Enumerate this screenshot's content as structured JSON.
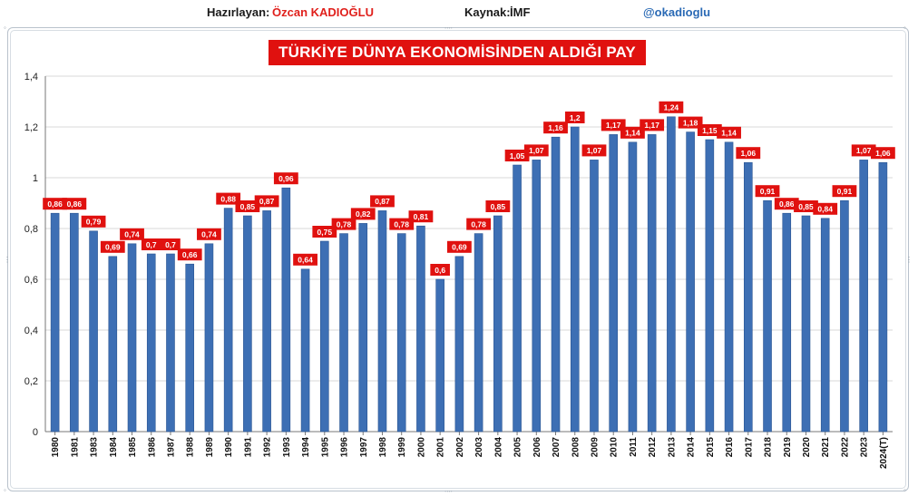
{
  "header": {
    "prepared_label": "Hazırlayan:",
    "prepared_name": "Özcan KADIOĞLU",
    "source_label": "Kaynak:",
    "source_value": "İMF",
    "handle": "@okadioglu"
  },
  "colors": {
    "bar": "#3d6fb4",
    "label_bg": "#e0110f",
    "title_bg": "#e0110f",
    "grid": "#d8d8d8"
  },
  "chart_data": {
    "type": "bar",
    "title": "TÜRKİYE DÜNYA EKONOMİSİNDEN ALDIĞI PAY (%)",
    "xlabel": "",
    "ylabel": "",
    "ylim": [
      0,
      1.4
    ],
    "yticks": [
      "0",
      "0,2",
      "0,4",
      "0,6",
      "0,8",
      "1",
      "1,2",
      "1,4"
    ],
    "grid": true,
    "legend": "none",
    "categories": [
      "1980",
      "1981",
      "1983",
      "1984",
      "1985",
      "1986",
      "1987",
      "1988",
      "1989",
      "1990",
      "1991",
      "1992",
      "1993",
      "1994",
      "1995",
      "1996",
      "1997",
      "1998",
      "1999",
      "2000",
      "2001",
      "2002",
      "2003",
      "2004",
      "2005",
      "2006",
      "2007",
      "2008",
      "2009",
      "2010",
      "2011",
      "2012",
      "2013",
      "2014",
      "2015",
      "2016",
      "2017",
      "2018",
      "2019",
      "2020",
      "2021",
      "2022",
      "2023",
      "2024(T)"
    ],
    "values": [
      0.86,
      0.86,
      0.79,
      0.69,
      0.74,
      0.7,
      0.7,
      0.66,
      0.74,
      0.88,
      0.85,
      0.87,
      0.96,
      0.64,
      0.75,
      0.78,
      0.82,
      0.87,
      0.78,
      0.81,
      0.6,
      0.69,
      0.78,
      0.85,
      1.05,
      1.07,
      1.16,
      1.2,
      1.07,
      1.17,
      1.14,
      1.17,
      1.24,
      1.18,
      1.15,
      1.14,
      1.06,
      0.91,
      0.86,
      0.85,
      0.84,
      0.91,
      1.07,
      1.06
    ],
    "labels": [
      "0,86",
      "0,86",
      "0,79",
      "0,69",
      "0,74",
      "0,7",
      "0,7",
      "0,66",
      "0,74",
      "0,88",
      "0,85",
      "0,87",
      "0,96",
      "0,64",
      "0,75",
      "0,78",
      "0,82",
      "0,87",
      "0,78",
      "0,81",
      "0,6",
      "0,69",
      "0,78",
      "0,85",
      "1,05",
      "1,07",
      "1,16",
      "1,2",
      "1,07",
      "1,17",
      "1,14",
      "1,17",
      "1,24",
      "1,18",
      "1,15",
      "1,14",
      "1,06",
      "0,91",
      "0,86",
      "0,85",
      "0,84",
      "0,91",
      "1,07",
      "1,06"
    ]
  }
}
